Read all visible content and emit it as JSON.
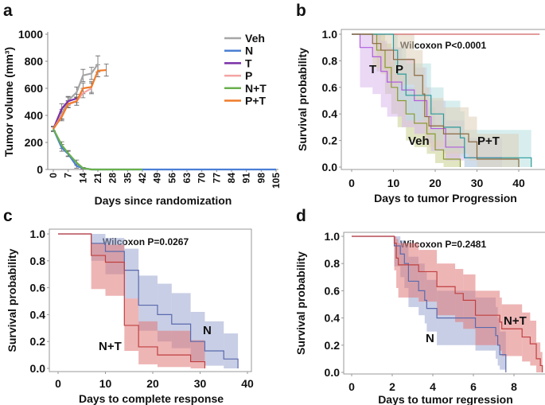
{
  "panel_labels": [
    "a",
    "b",
    "c",
    "d"
  ],
  "chart_data": [
    {
      "panel": "a",
      "type": "line",
      "xlabel": "Days since randomization",
      "ylabel": "Tumor volume (mm³)",
      "xlim": [
        0,
        105
      ],
      "ylim": [
        0,
        1000
      ],
      "xticks": [
        0,
        7,
        14,
        21,
        28,
        35,
        42,
        49,
        56,
        63,
        70,
        77,
        84,
        91,
        98,
        105
      ],
      "yticks": [
        0,
        200,
        400,
        600,
        800,
        1000
      ],
      "legend_position": "top-right",
      "series": [
        {
          "name": "Veh",
          "color": "#a6a6a6",
          "x": [
            0,
            4,
            7,
            11,
            14,
            18,
            21
          ],
          "y": [
            300,
            410,
            510,
            570,
            695,
            710,
            780
          ],
          "err": [
            20,
            35,
            30,
            40,
            45,
            45,
            60
          ]
        },
        {
          "name": "N",
          "color": "#4a7fd4",
          "x": [
            0,
            4,
            7,
            11,
            14,
            18,
            21,
            28,
            35,
            42,
            49,
            56,
            63,
            70,
            77,
            84,
            91,
            98,
            105
          ],
          "y": [
            300,
            160,
            115,
            25,
            10,
            0,
            0,
            0,
            0,
            0,
            0,
            0,
            0,
            0,
            0,
            0,
            0,
            0,
            0
          ],
          "err": [
            15,
            25,
            20,
            15,
            5,
            0,
            0,
            0,
            0,
            0,
            0,
            0,
            0,
            0,
            0,
            0,
            0,
            0,
            0
          ]
        },
        {
          "name": "T",
          "color": "#7a2fa8",
          "x": [
            0,
            4,
            7,
            11
          ],
          "y": [
            300,
            450,
            505,
            525
          ],
          "err": [
            15,
            35,
            30,
            30
          ]
        },
        {
          "name": "P",
          "color": "#f4a3a3",
          "x": [
            0,
            4,
            7,
            11,
            14,
            18
          ],
          "y": [
            300,
            400,
            480,
            505,
            565,
            600
          ],
          "err": [
            15,
            30,
            25,
            30,
            35,
            40
          ]
        },
        {
          "name": "N+T",
          "color": "#6ab04c",
          "x": [
            0,
            4,
            7,
            11,
            14,
            18,
            21,
            28,
            35,
            42
          ],
          "y": [
            300,
            180,
            120,
            50,
            10,
            0,
            0,
            0,
            0,
            0
          ],
          "err": [
            15,
            25,
            20,
            20,
            5,
            0,
            0,
            0,
            0,
            0
          ]
        },
        {
          "name": "P+T",
          "color": "#f07b2a",
          "x": [
            0,
            4,
            7,
            11,
            14,
            18,
            21,
            25
          ],
          "y": [
            300,
            390,
            485,
            505,
            600,
            610,
            730,
            735
          ],
          "err": [
            15,
            30,
            25,
            30,
            40,
            40,
            45,
            45
          ]
        }
      ]
    },
    {
      "panel": "b",
      "type": "line",
      "title": "Wilcoxon P<0.0001",
      "xlabel": "Days to tumor Progression",
      "ylabel": "Survival probability",
      "xlim": [
        0,
        45
      ],
      "ylim": [
        0,
        1
      ],
      "xticks": [
        0,
        10,
        20,
        30,
        40
      ],
      "yticks": [
        "0.0",
        "0.2",
        "0.4",
        "0.6",
        "0.8",
        "1.0"
      ],
      "series": [
        {
          "name": "",
          "color": "#d06060",
          "band": "#d06060",
          "times": [
            0,
            45
          ],
          "survival": [
            1,
            1
          ],
          "lower": [
            1,
            1
          ],
          "upper": [
            1,
            1
          ]
        },
        {
          "name": "Veh",
          "label_color": "#88aa22",
          "color": "#8a9a30",
          "band": "#c8d090",
          "times": [
            0,
            6,
            8,
            9.5,
            11,
            13,
            15,
            18,
            20,
            22,
            26
          ],
          "survival": [
            1,
            0.88,
            0.75,
            0.6,
            0.5,
            0.4,
            0.33,
            0.25,
            0.13,
            0.06,
            0
          ],
          "lower": [
            1,
            0.72,
            0.55,
            0.4,
            0.3,
            0.2,
            0.15,
            0.1,
            0.03,
            0,
            0
          ],
          "upper": [
            1,
            1,
            0.93,
            0.8,
            0.7,
            0.6,
            0.52,
            0.45,
            0.3,
            0.2,
            0
          ]
        },
        {
          "name": "T",
          "label_color": "#cc33cc",
          "color": "#b05ce0",
          "band": "#d8b8ec",
          "times": [
            0,
            2,
            5,
            7,
            8.5,
            12,
            15,
            18,
            19,
            22.5,
            27,
            36
          ],
          "survival": [
            1,
            0.9,
            0.83,
            0.72,
            0.64,
            0.58,
            0.5,
            0.38,
            0.29,
            0.15,
            0.07,
            0.07
          ],
          "lower": [
            1,
            0.6,
            0.55,
            0.45,
            0.38,
            0.3,
            0.25,
            0.18,
            0.12,
            0.05,
            0,
            0
          ],
          "upper": [
            1,
            1,
            1,
            0.95,
            0.9,
            0.82,
            0.75,
            0.6,
            0.5,
            0.35,
            0.22,
            0.22
          ]
        },
        {
          "name": "P",
          "label_color": "#1a9a9a",
          "color": "#2a9a9a",
          "band": "#b8e0e0",
          "times": [
            0,
            10,
            11,
            13,
            19,
            22,
            26,
            27,
            43
          ],
          "survival": [
            1,
            0.88,
            0.7,
            0.54,
            0.4,
            0.3,
            0.22,
            0.07,
            0
          ],
          "lower": [
            1,
            0.7,
            0.5,
            0.35,
            0.2,
            0.12,
            0.08,
            0,
            0
          ],
          "upper": [
            1,
            1,
            0.9,
            0.78,
            0.6,
            0.5,
            0.42,
            0.28,
            0
          ]
        },
        {
          "name": "P+T",
          "label_color": "#9a6a30",
          "color": "#8a6a40",
          "band": "#dccfb8",
          "times": [
            0,
            5,
            7,
            10,
            15,
            17,
            17.5,
            18.5,
            22,
            28,
            30,
            40
          ],
          "survival": [
            1,
            0.93,
            0.88,
            0.81,
            0.69,
            0.55,
            0.38,
            0.31,
            0.25,
            0.19,
            0.06,
            0
          ],
          "lower": [
            1,
            0.75,
            0.7,
            0.62,
            0.5,
            0.35,
            0.2,
            0.15,
            0.1,
            0.05,
            0,
            0
          ],
          "upper": [
            1,
            1,
            1,
            1,
            0.88,
            0.75,
            0.6,
            0.52,
            0.45,
            0.38,
            0.25,
            0
          ]
        }
      ]
    },
    {
      "panel": "c",
      "type": "line",
      "title": "Wilcoxon P=0.0267",
      "xlabel": "Days to complete response",
      "ylabel": "Survival probability",
      "xlim": [
        0,
        40
      ],
      "ylim": [
        0,
        1
      ],
      "xticks": [
        0,
        10,
        20,
        30,
        40
      ],
      "yticks": [
        "0.0",
        "0.2",
        "0.4",
        "0.6",
        "0.8",
        "1.0"
      ],
      "series": [
        {
          "name": "N",
          "label_color": "#1a2ac0",
          "color": "#5a6aae",
          "band": "#9aa6d0",
          "times": [
            0,
            7,
            10,
            14,
            17,
            21,
            24,
            28,
            31,
            35,
            38
          ],
          "survival": [
            1,
            0.93,
            0.87,
            0.73,
            0.47,
            0.4,
            0.33,
            0.2,
            0.13,
            0.07,
            0
          ],
          "lower": [
            1,
            0.8,
            0.7,
            0.52,
            0.28,
            0.2,
            0.15,
            0.05,
            0.02,
            0,
            0
          ],
          "upper": [
            1,
            1,
            0.97,
            0.89,
            0.69,
            0.63,
            0.56,
            0.42,
            0.35,
            0.26,
            0
          ]
        },
        {
          "name": "N+T",
          "label_color": "#ee2222",
          "color": "#c04040",
          "band": "#e07878",
          "times": [
            0,
            7,
            10,
            14,
            17,
            21,
            28,
            31
          ],
          "survival": [
            1,
            0.84,
            0.79,
            0.32,
            0.16,
            0.1,
            0.05,
            0
          ],
          "lower": [
            1,
            0.59,
            0.54,
            0.13,
            0.03,
            0.01,
            0,
            0
          ],
          "upper": [
            1,
            0.93,
            0.92,
            0.52,
            0.35,
            0.28,
            0.21,
            0
          ]
        }
      ]
    },
    {
      "panel": "d",
      "type": "line",
      "title": "Wilcoxon P=0.2481",
      "xlabel": "Days to tumor regression",
      "ylabel": "Survival probability",
      "xlim": [
        0,
        9.5
      ],
      "ylim": [
        0,
        1
      ],
      "xticks": [
        0,
        2,
        4,
        6,
        8
      ],
      "yticks": [
        "0.0",
        "0.2",
        "0.4",
        "0.6",
        "0.8",
        "1.0"
      ],
      "series": [
        {
          "name": "N",
          "label_color": "#1a2ac0",
          "color": "#5a6aae",
          "band": "#9aa6d0",
          "times": [
            0,
            2.1,
            2.4,
            2.6,
            2.8,
            3.3,
            3.6,
            3.7,
            4.2,
            6.1,
            7.1,
            7.2,
            7.3,
            7.6
          ],
          "survival": [
            1,
            0.93,
            0.87,
            0.8,
            0.67,
            0.6,
            0.53,
            0.47,
            0.4,
            0.33,
            0.27,
            0.2,
            0.13,
            0
          ],
          "lower": [
            1,
            0.78,
            0.7,
            0.62,
            0.48,
            0.42,
            0.36,
            0.3,
            0.2,
            0.16,
            0.1,
            0.05,
            0.02,
            0
          ],
          "upper": [
            1,
            1,
            0.97,
            0.93,
            0.85,
            0.8,
            0.74,
            0.68,
            0.6,
            0.55,
            0.48,
            0.4,
            0.3,
            0
          ]
        },
        {
          "name": "N+T",
          "label_color": "#ee2222",
          "color": "#c04040",
          "band": "#e07878",
          "times": [
            0,
            2.1,
            2.2,
            2.3,
            3.3,
            4.2,
            5.1,
            5.5,
            6.1,
            7.3,
            7.4,
            8.4,
            8.8,
            9.1,
            9.3,
            9.4
          ],
          "survival": [
            1,
            0.95,
            0.84,
            0.79,
            0.74,
            0.63,
            0.58,
            0.53,
            0.42,
            0.37,
            0.32,
            0.26,
            0.21,
            0.1,
            0.05,
            0
          ],
          "lower": [
            1,
            0.75,
            0.62,
            0.55,
            0.52,
            0.42,
            0.37,
            0.32,
            0.2,
            0.16,
            0.12,
            0.08,
            0.05,
            0,
            0,
            0
          ],
          "upper": [
            1,
            1,
            0.98,
            0.95,
            0.9,
            0.8,
            0.76,
            0.72,
            0.6,
            0.55,
            0.5,
            0.44,
            0.38,
            0.22,
            0.15,
            0
          ]
        }
      ]
    }
  ]
}
